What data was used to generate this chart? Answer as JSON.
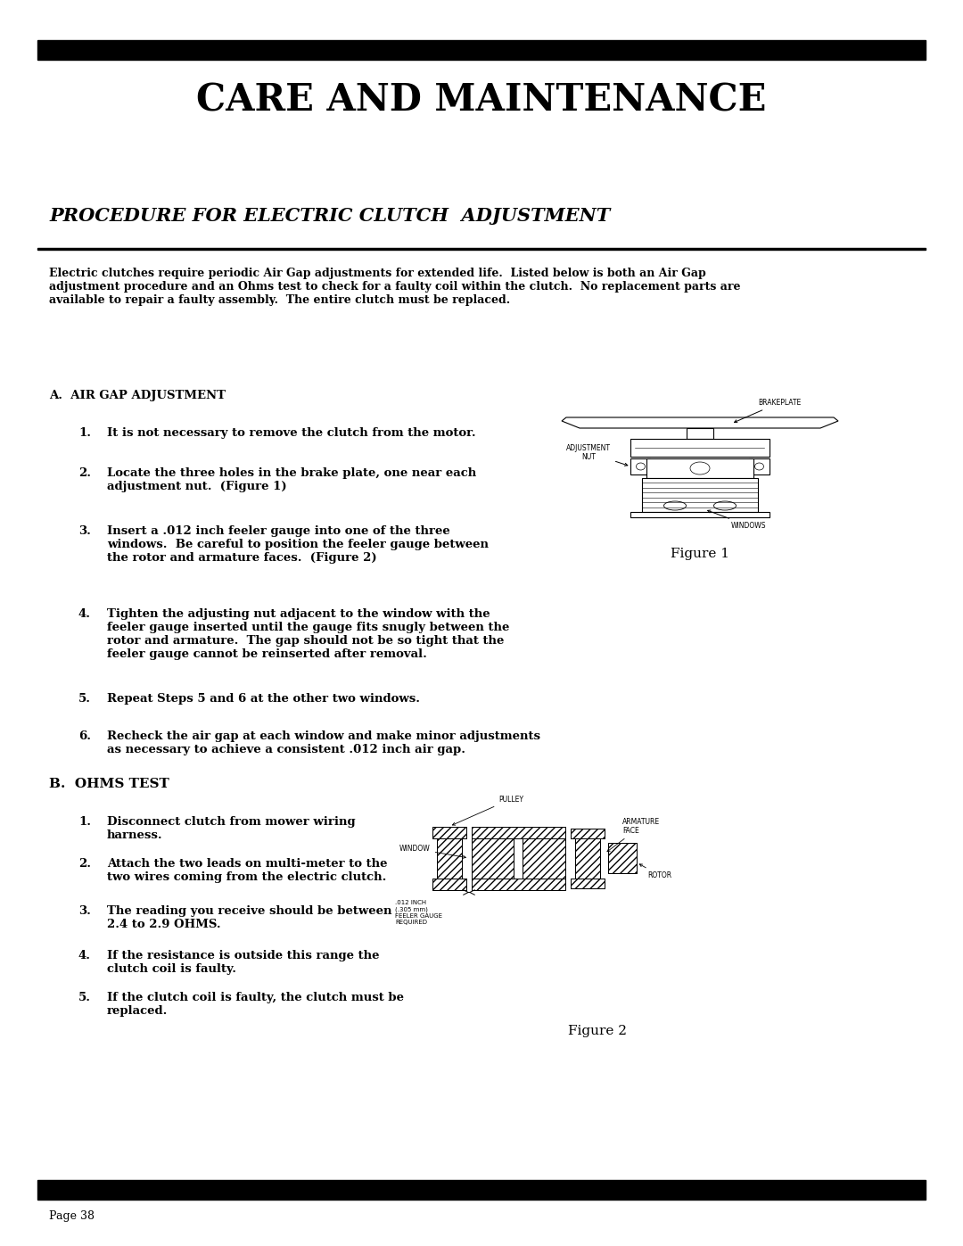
{
  "title": "CARE AND MAINTENANCE",
  "subtitle": "PROCEDURE FOR ELECTRIC CLUTCH  ADJUSTMENT",
  "intro_text": "Electric clutches require periodic Air Gap adjustments for extended life.  Listed below is both an Air Gap\nadjustment procedure and an Ohms test to check for a faulty coil within the clutch.  No replacement parts are\navailable to repair a faulty assembly.  The entire clutch must be replaced.",
  "section_a_title": "A.  AIR GAP ADJUSTMENT",
  "section_a_items": [
    "It is not necessary to remove the clutch from the motor.",
    "Locate the three holes in the brake plate, one near each\nadjustment nut.  (Figure 1)",
    "Insert a .012 inch feeler gauge into one of the three\nwindows.  Be careful to position the feeler gauge between\nthe rotor and armature faces.  (Figure 2)",
    "Tighten the adjusting nut adjacent to the window with the\nfeeler gauge inserted until the gauge fits snugly between the\nrotor and armature.  The gap should not be so tight that the\nfeeler gauge cannot be reinserted after removal.",
    "Repeat Steps 5 and 6 at the other two windows.",
    "Recheck the air gap at each window and make minor adjustments\nas necessary to achieve a consistent .012 inch air gap."
  ],
  "figure1_caption": "Figure 1",
  "section_b_title": "B.  OHMS TEST",
  "section_b_items": [
    "Disconnect clutch from mower wiring\nharness.",
    "Attach the two leads on multi-meter to the\ntwo wires coming from the electric clutch.",
    "The reading you receive should be between\n2.4 to 2.9 OHMS.",
    "If the resistance is outside this range the\nclutch coil is faulty.",
    "If the clutch coil is faulty, the clutch must be\nreplaced."
  ],
  "figure2_caption": "Figure 2",
  "page_label": "Page 38",
  "bg_color": "#ffffff",
  "text_color": "#000000",
  "bar_color": "#000000"
}
